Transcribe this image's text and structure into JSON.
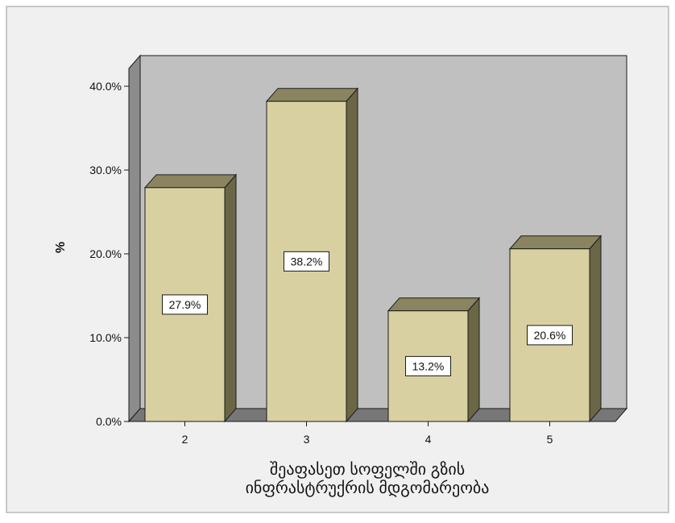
{
  "chart_data": {
    "type": "bar",
    "ylabel": "%",
    "xlabel_lines": [
      "შეაფასეთ სოფელში გზის",
      "ინფრასტრუქრის მდგომარეობა"
    ],
    "categories": [
      "2",
      "3",
      "4",
      "5"
    ],
    "values": [
      27.9,
      38.2,
      13.2,
      20.6
    ],
    "data_labels": [
      "27.9%",
      "38.2%",
      "13.2%",
      "20.6%"
    ],
    "ylim": [
      0,
      40
    ],
    "yticks": [
      0,
      10,
      20,
      30,
      40
    ],
    "ytick_labels": [
      "0.0%",
      "10.0%",
      "20.0%",
      "30.0%",
      "40.0%"
    ],
    "grid": false,
    "legend": "none",
    "style": "3d-bar",
    "colors": {
      "background": "#f0f0f0",
      "plot_back_wall": "#c0c0c0",
      "side_wall": "#8c8c8c",
      "floor": "#777777",
      "bar_face": "#d9d0a2",
      "bar_top": "#8a8460",
      "bar_side": "#6b6645",
      "outline": "#1a1a1a"
    }
  }
}
